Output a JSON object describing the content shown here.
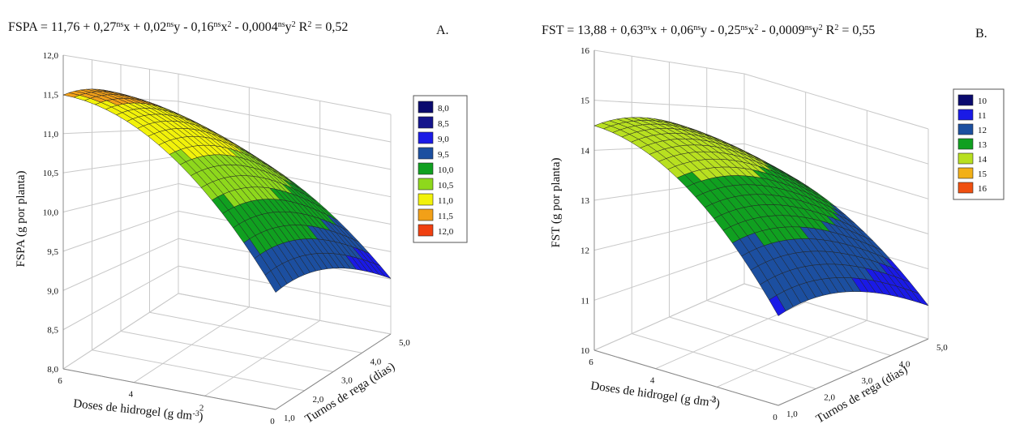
{
  "chart_data": [
    {
      "type": "surface",
      "title": [
        {
          "text": "FSPA = 11,76 + 0,27"
        },
        {
          "text": "ns",
          "sup": true
        },
        {
          "text": "x + 0,02"
        },
        {
          "text": "ns",
          "sup": true
        },
        {
          "text": "y - 0,16"
        },
        {
          "text": "ns",
          "sup": true
        },
        {
          "text": "x"
        },
        {
          "text": "2",
          "sup": true
        },
        {
          "text": " - 0,0004"
        },
        {
          "text": "ns",
          "sup": true
        },
        {
          "text": "y"
        },
        {
          "text": "2",
          "sup": true
        },
        {
          "text": " R"
        },
        {
          "text": "2",
          "sup": true
        },
        {
          "text": " = 0,52"
        }
      ],
      "panel_label": "A.",
      "zlabel": "FSPA (g por planta)",
      "xlabel": [
        {
          "text": "Doses de hidrogel (g dm"
        },
        {
          "text": "-3",
          "sup": true
        },
        {
          "text": ")"
        }
      ],
      "ylabel": "Turnos de rega (dias)",
      "xlim": [
        0,
        6
      ],
      "xticks": [
        0,
        2,
        4,
        6
      ],
      "ylim": [
        1,
        5
      ],
      "yticks": [
        {
          "value": 1,
          "label": "1,0"
        },
        {
          "value": 2,
          "label": "2,0"
        },
        {
          "value": 3,
          "label": "3,0"
        },
        {
          "value": 4,
          "label": "4,0"
        },
        {
          "value": 5,
          "label": "5,0"
        }
      ],
      "zlim": [
        8,
        12
      ],
      "zticks": [
        {
          "value": 8,
          "label": "8,0"
        },
        {
          "value": 8.5,
          "label": "8,5"
        },
        {
          "value": 9,
          "label": "9,0"
        },
        {
          "value": 9.5,
          "label": "9,5"
        },
        {
          "value": 10,
          "label": "10,0"
        },
        {
          "value": 10.5,
          "label": "10,5"
        },
        {
          "value": 11,
          "label": "11,0"
        },
        {
          "value": 11.5,
          "label": "11,5"
        },
        {
          "value": 12,
          "label": "12,0"
        }
      ],
      "legend": [
        {
          "value": 8,
          "label": "8,0",
          "color": "#0a0a6e"
        },
        {
          "value": 8.5,
          "label": "8,5",
          "color": "#14148c"
        },
        {
          "value": 9,
          "label": "9,0",
          "color": "#1a1ae6"
        },
        {
          "value": 9.5,
          "label": "9,5",
          "color": "#1c4fa0"
        },
        {
          "value": 10,
          "label": "10,0",
          "color": "#10a020"
        },
        {
          "value": 10.5,
          "label": "10,5",
          "color": "#8ed81c"
        },
        {
          "value": 11,
          "label": "11,0",
          "color": "#f2f20a"
        },
        {
          "value": 11.5,
          "label": "11,5",
          "color": "#f2a018"
        },
        {
          "value": 12,
          "label": "12,0",
          "color": "#f04010"
        }
      ]
    },
    {
      "type": "surface",
      "title": [
        {
          "text": "FST = 13,88 + 0,63"
        },
        {
          "text": "ns",
          "sup": true
        },
        {
          "text": "x + 0,06"
        },
        {
          "text": "ns",
          "sup": true
        },
        {
          "text": "y - 0,25"
        },
        {
          "text": "ns",
          "sup": true
        },
        {
          "text": "x"
        },
        {
          "text": "2",
          "sup": true
        },
        {
          "text": " - 0,0009"
        },
        {
          "text": "ns",
          "sup": true
        },
        {
          "text": "y"
        },
        {
          "text": "2",
          "sup": true
        },
        {
          "text": " R"
        },
        {
          "text": "2",
          "sup": true
        },
        {
          "text": " = 0,55"
        }
      ],
      "panel_label": "B.",
      "zlabel": "FST (g por planta)",
      "xlabel": [
        {
          "text": "Doses de hidrogel (g dm"
        },
        {
          "text": "-3",
          "sup": true
        },
        {
          "text": ")"
        }
      ],
      "ylabel": "Turnos de rega (dias)",
      "xlim": [
        0,
        6
      ],
      "xticks": [
        0,
        2,
        4,
        6
      ],
      "ylim": [
        1,
        5
      ],
      "yticks": [
        {
          "value": 1,
          "label": "1,0"
        },
        {
          "value": 2,
          "label": "2,0"
        },
        {
          "value": 3,
          "label": "3,0"
        },
        {
          "value": 4,
          "label": "4,0"
        },
        {
          "value": 5,
          "label": "5,0"
        }
      ],
      "zlim": [
        10,
        16
      ],
      "zticks": [
        10,
        11,
        12,
        13,
        14,
        15,
        16
      ],
      "legend": [
        {
          "value": 10,
          "label": "10",
          "color": "#0a0a6e"
        },
        {
          "value": 11,
          "label": "11",
          "color": "#1a1ae6"
        },
        {
          "value": 12,
          "label": "12",
          "color": "#1c4fa0"
        },
        {
          "value": 13,
          "label": "13",
          "color": "#10a020"
        },
        {
          "value": 14,
          "label": "14",
          "color": "#b8e020"
        },
        {
          "value": 15,
          "label": "15",
          "color": "#f2b018"
        },
        {
          "value": 16,
          "label": "16",
          "color": "#f05010"
        }
      ]
    }
  ]
}
